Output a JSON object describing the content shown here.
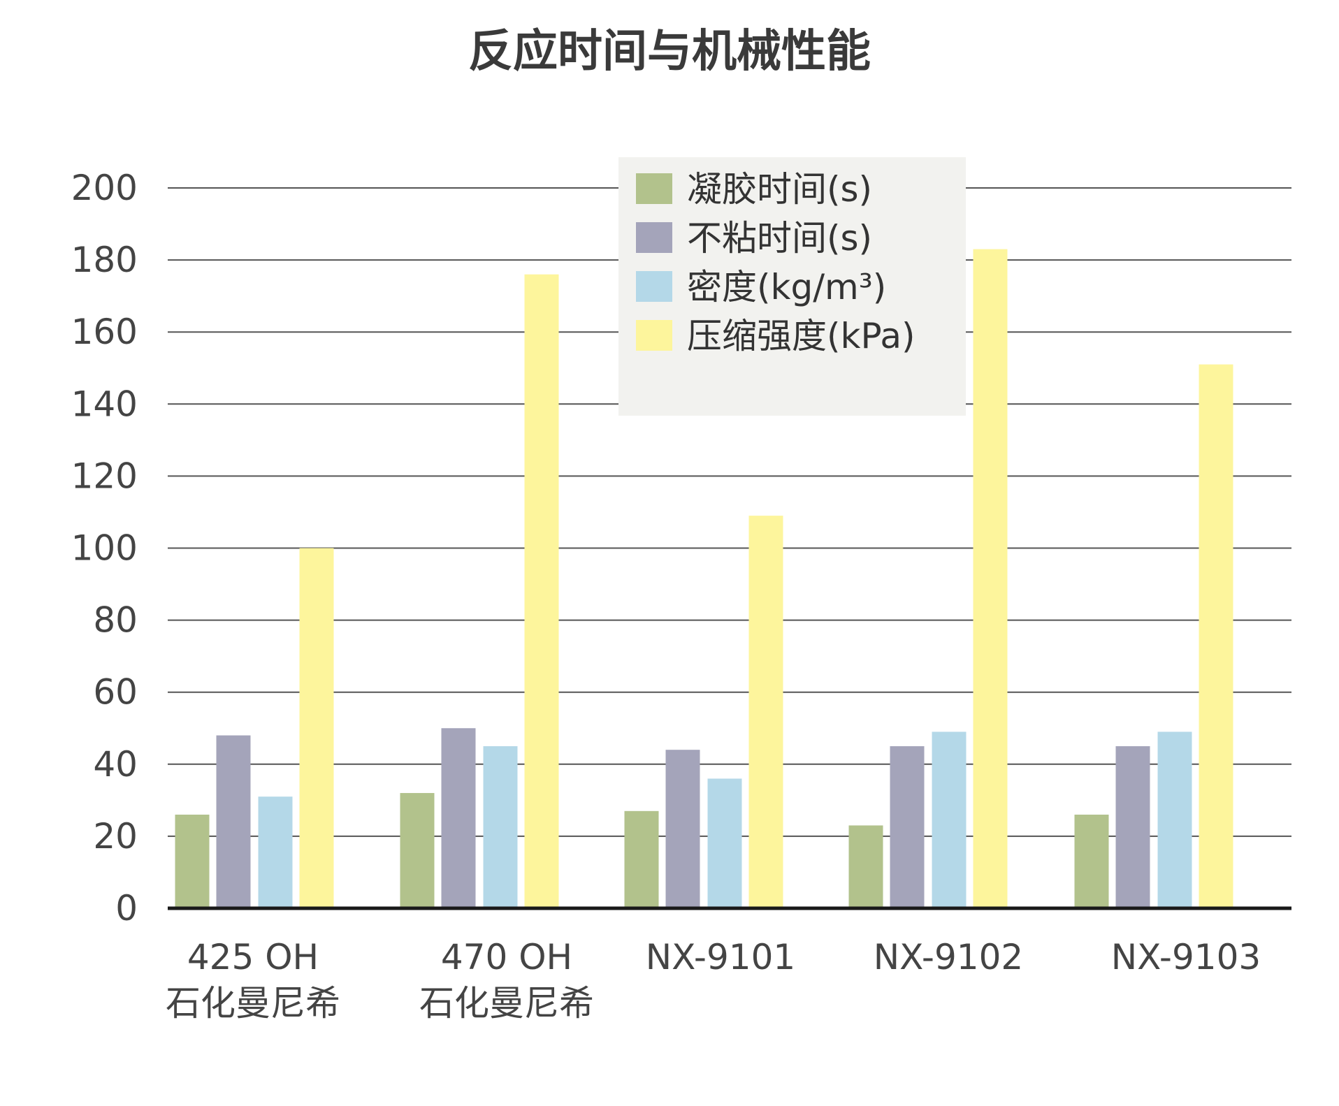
{
  "chart_data": {
    "type": "bar",
    "title": "反应时间与机械性能",
    "xlabel": "",
    "ylabel": "",
    "ylim": [
      0,
      200
    ],
    "yticks": [
      0,
      20,
      40,
      60,
      80,
      100,
      120,
      140,
      160,
      180,
      200
    ],
    "grid": true,
    "legend_position": "top-center",
    "categories": [
      [
        "425 OH",
        "石化曼尼希"
      ],
      [
        "470 OH",
        "石化曼尼希"
      ],
      [
        "NX-9101"
      ],
      [
        "NX-9102"
      ],
      [
        "NX-9103"
      ]
    ],
    "series": [
      {
        "name": "凝胶时间(s)",
        "color": "#b2c28c",
        "values": [
          26,
          32,
          27,
          23,
          26
        ]
      },
      {
        "name": "不粘时间(s)",
        "color": "#a4a4ba",
        "values": [
          48,
          50,
          44,
          45,
          45
        ]
      },
      {
        "name": "密度(kg/m³)",
        "color": "#b4d8e8",
        "values": [
          31,
          45,
          36,
          49,
          49
        ]
      },
      {
        "name": "压缩强度(kPa)",
        "color": "#fdf59c",
        "values": [
          100,
          176,
          109,
          183,
          151
        ]
      }
    ],
    "colors": {
      "grid": "#555555",
      "axis": "#1a1a1a",
      "legend_background": "#f2f2ef"
    }
  }
}
